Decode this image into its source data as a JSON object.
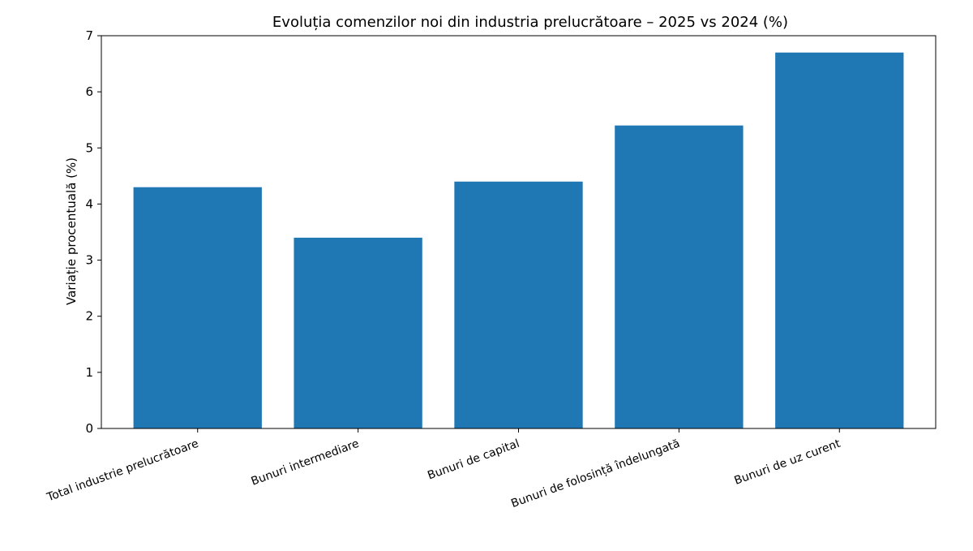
{
  "chart_data": {
    "type": "bar",
    "title": "Evoluția comenzilor noi din industria prelucrătoare – 2025 vs 2024 (%)",
    "xlabel": "",
    "ylabel": "Variație procentuală (%)",
    "categories": [
      "Total industrie prelucrătoare",
      "Bunuri intermediare",
      "Bunuri de capital",
      "Bunuri de folosință îndelungată",
      "Bunuri de uz curent"
    ],
    "values": [
      4.3,
      3.4,
      4.4,
      5.4,
      6.7
    ],
    "ylim": [
      0,
      7
    ],
    "yticks": [
      "0",
      "1",
      "2",
      "3",
      "4",
      "5",
      "6",
      "7"
    ],
    "grid": false,
    "legend": "none",
    "bar_color": "#1f77b4"
  }
}
